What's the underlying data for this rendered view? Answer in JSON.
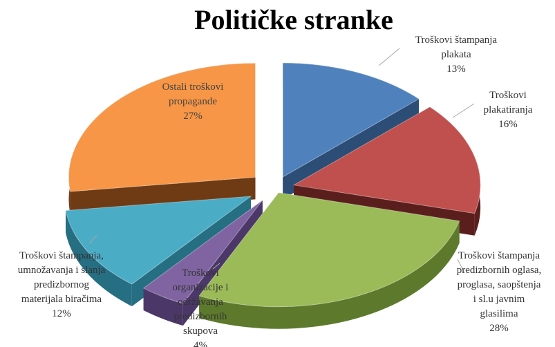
{
  "chart_data": {
    "type": "pie",
    "title": "Političke stranke",
    "slices": [
      {
        "name": "Troškovi štampanja plakata",
        "value": 13,
        "label": "13%",
        "color": "#4f81bd",
        "dark": "#2c4d75",
        "text_lines": [
          "Troškovi štampanja",
          "plakata",
          "13%"
        ]
      },
      {
        "name": "Troškovi plakatiranja",
        "value": 16,
        "label": "16%",
        "color": "#c0504d",
        "dark": "#5a1f1d",
        "text_lines": [
          "Troškovi",
          "plakatiranja",
          "16%"
        ]
      },
      {
        "name": "Troškovi štampanja predizbornih oglasa, proglasa, saopštenja i sl.u javnim glasilima",
        "value": 28,
        "label": "28%",
        "color": "#9bbb59",
        "dark": "#5d7a2c",
        "text_lines": [
          "Troškovi štampanja",
          "predizbornih oglasa,",
          "proglasa, saopštenja",
          "i sl.u javnim",
          "glasilima",
          "28%"
        ]
      },
      {
        "name": "Troškovi organizacije i održavanja predizbornih skupova",
        "value": 4,
        "label": "4%",
        "color": "#8064a2",
        "dark": "#4b3868",
        "text_lines": [
          "Troškovi",
          "organizacije i",
          "održavanja",
          "predizbornih",
          "skupova",
          "4%"
        ]
      },
      {
        "name": "Troškovi štampanja, umnožavanja i slanja predizbornog materijala biračima",
        "value": 12,
        "label": "12%",
        "color": "#4bacc6",
        "dark": "#266e82",
        "text_lines": [
          "Troškovi štampanja,",
          "umnožavanja i slanja",
          "predizbornog",
          "materijala biračima",
          "12%"
        ]
      },
      {
        "name": "Ostali troškovi propagande",
        "value": 27,
        "label": "27%",
        "color": "#f79646",
        "dark": "#6e3b14",
        "text_lines": [
          "Ostali troškovi",
          "propagande",
          "27%"
        ]
      }
    ]
  }
}
